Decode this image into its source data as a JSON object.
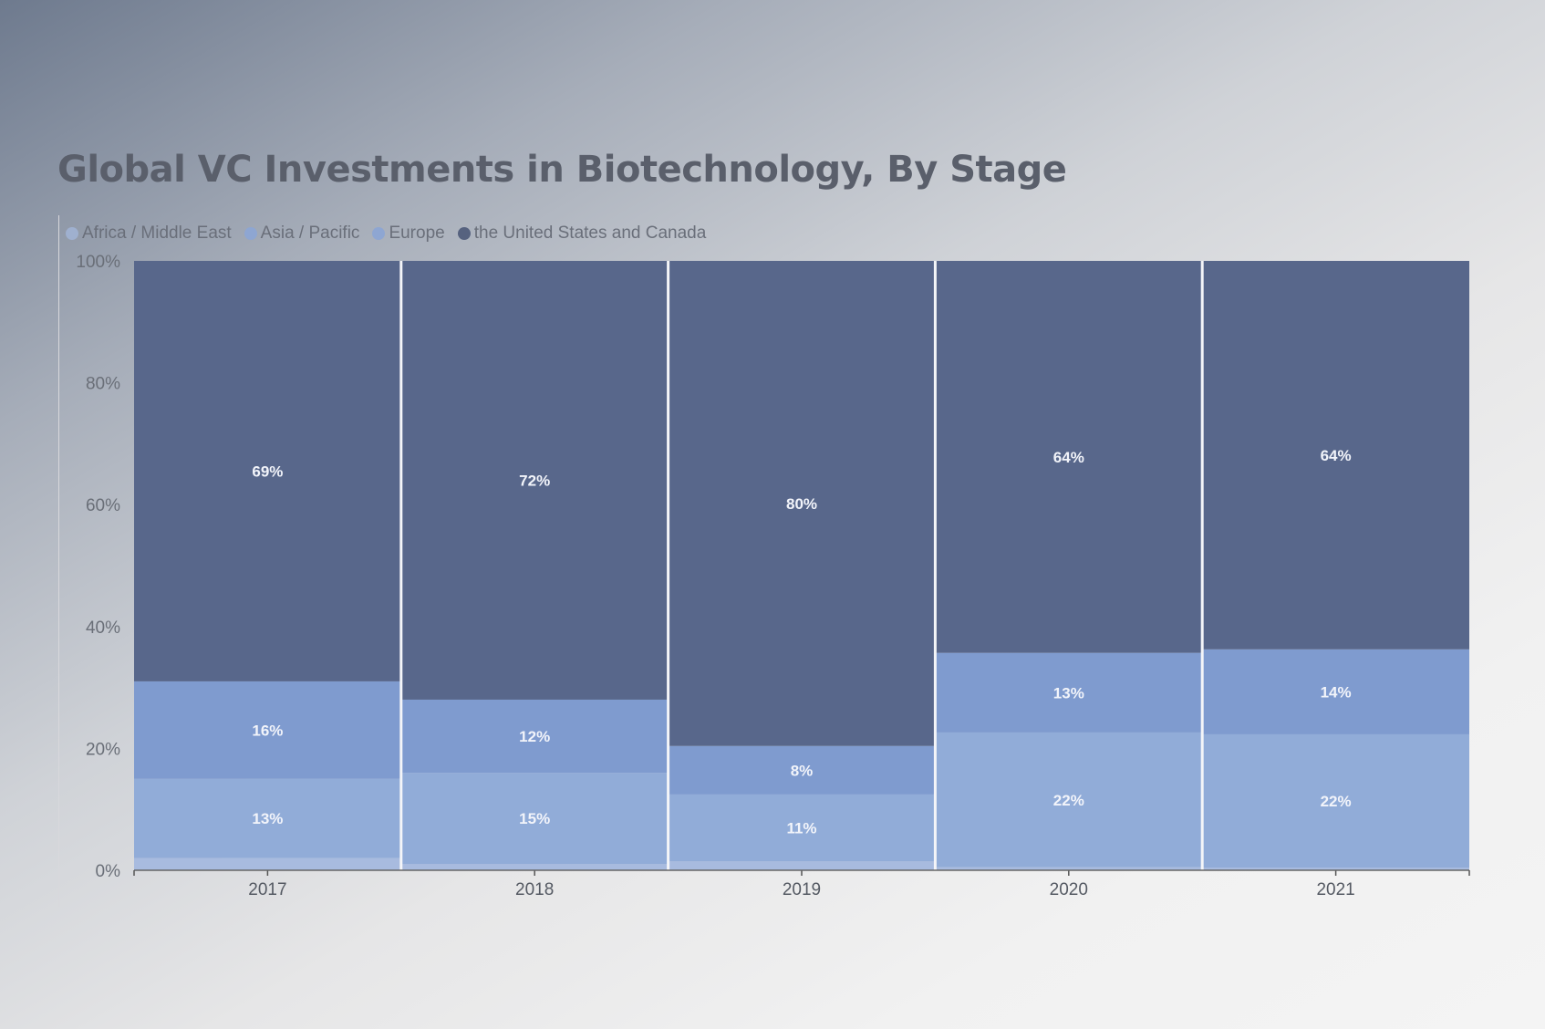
{
  "chart_data": {
    "type": "bar",
    "stacked": "percent",
    "title": "Global VC Investments in Biotechnology, By Stage",
    "categories": [
      "2017",
      "2018",
      "2019",
      "2020",
      "2021"
    ],
    "series": [
      {
        "name": "Africa / Middle East",
        "values": [
          2,
          1,
          1.5,
          0.5,
          0.4
        ],
        "color": "#a8bbdf",
        "labels": [
          "",
          "",
          "",
          "",
          ""
        ]
      },
      {
        "name": "Asia / Pacific",
        "values": [
          13,
          15,
          11,
          22,
          22
        ],
        "color": "#91acd8",
        "labels": [
          "13%",
          "15%",
          "11%",
          "22%",
          "22%"
        ]
      },
      {
        "name": "Europe",
        "values": [
          16,
          12,
          8,
          13,
          14
        ],
        "color": "#7f9bcf",
        "labels": [
          "16%",
          "12%",
          "8%",
          "13%",
          "14%"
        ]
      },
      {
        "name": "the United States and Canada",
        "values": [
          69,
          72,
          80,
          64,
          64
        ],
        "color": "#58678b",
        "labels": [
          "69%",
          "72%",
          "80%",
          "64%",
          "64%"
        ]
      }
    ],
    "yticks": [
      "0%",
      "20%",
      "40%",
      "60%",
      "80%",
      "100%"
    ],
    "ylim": [
      0,
      100
    ],
    "legend_position": "top-left",
    "grid": false
  }
}
